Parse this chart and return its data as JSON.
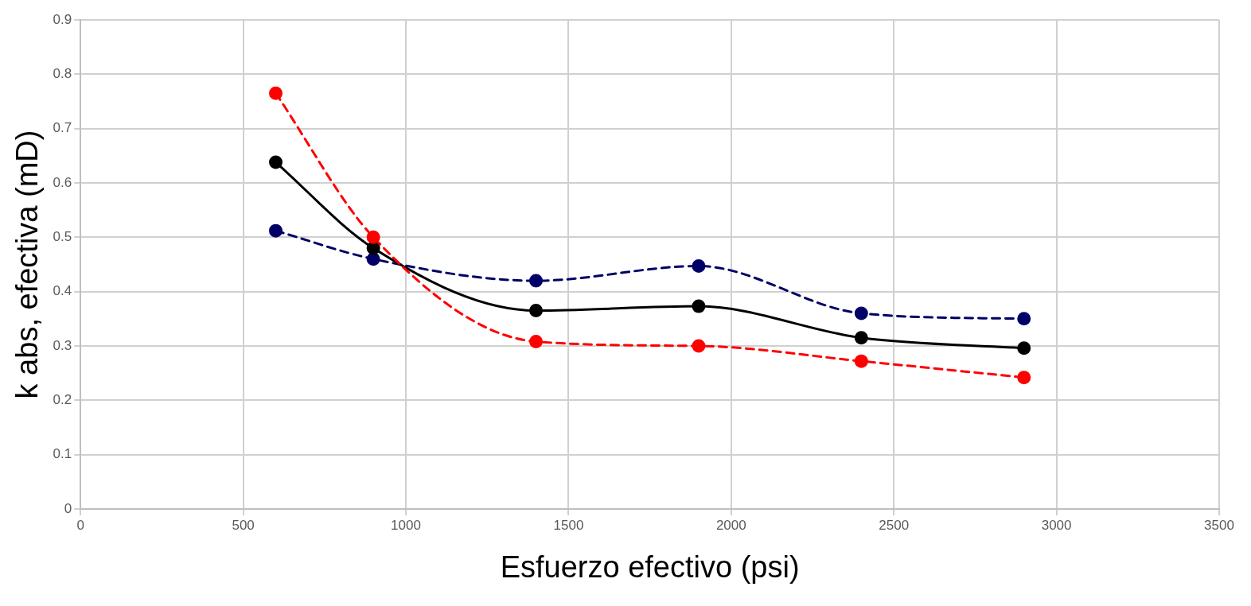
{
  "chart_data": {
    "type": "line",
    "xlabel": "Esfuerzo efectivo (psi)",
    "ylabel": "k abs, efectiva (mD)",
    "x": [
      600,
      900,
      1400,
      1900,
      2400,
      2900
    ],
    "series": [
      {
        "color": "#ff0000",
        "line_style": "dashed",
        "values": [
          0.765,
          0.5,
          0.308,
          0.3,
          0.272,
          0.242
        ]
      },
      {
        "color": "#000000",
        "line_style": "solid",
        "values": [
          0.638,
          0.48,
          0.365,
          0.373,
          0.315,
          0.296
        ]
      },
      {
        "color": "#000066",
        "line_style": "dashed",
        "values": [
          0.512,
          0.46,
          0.42,
          0.447,
          0.36,
          0.35
        ]
      }
    ],
    "xlim": [
      0,
      3500
    ],
    "xticks": [
      0,
      500,
      1000,
      1500,
      2000,
      2500,
      3000,
      3500
    ],
    "ylim": [
      0,
      0.9
    ],
    "yticks": [
      0,
      0.1,
      0.2,
      0.3,
      0.4,
      0.5,
      0.6,
      0.7,
      0.8,
      0.9
    ],
    "grid": true,
    "legend": false,
    "marker": "circle"
  }
}
